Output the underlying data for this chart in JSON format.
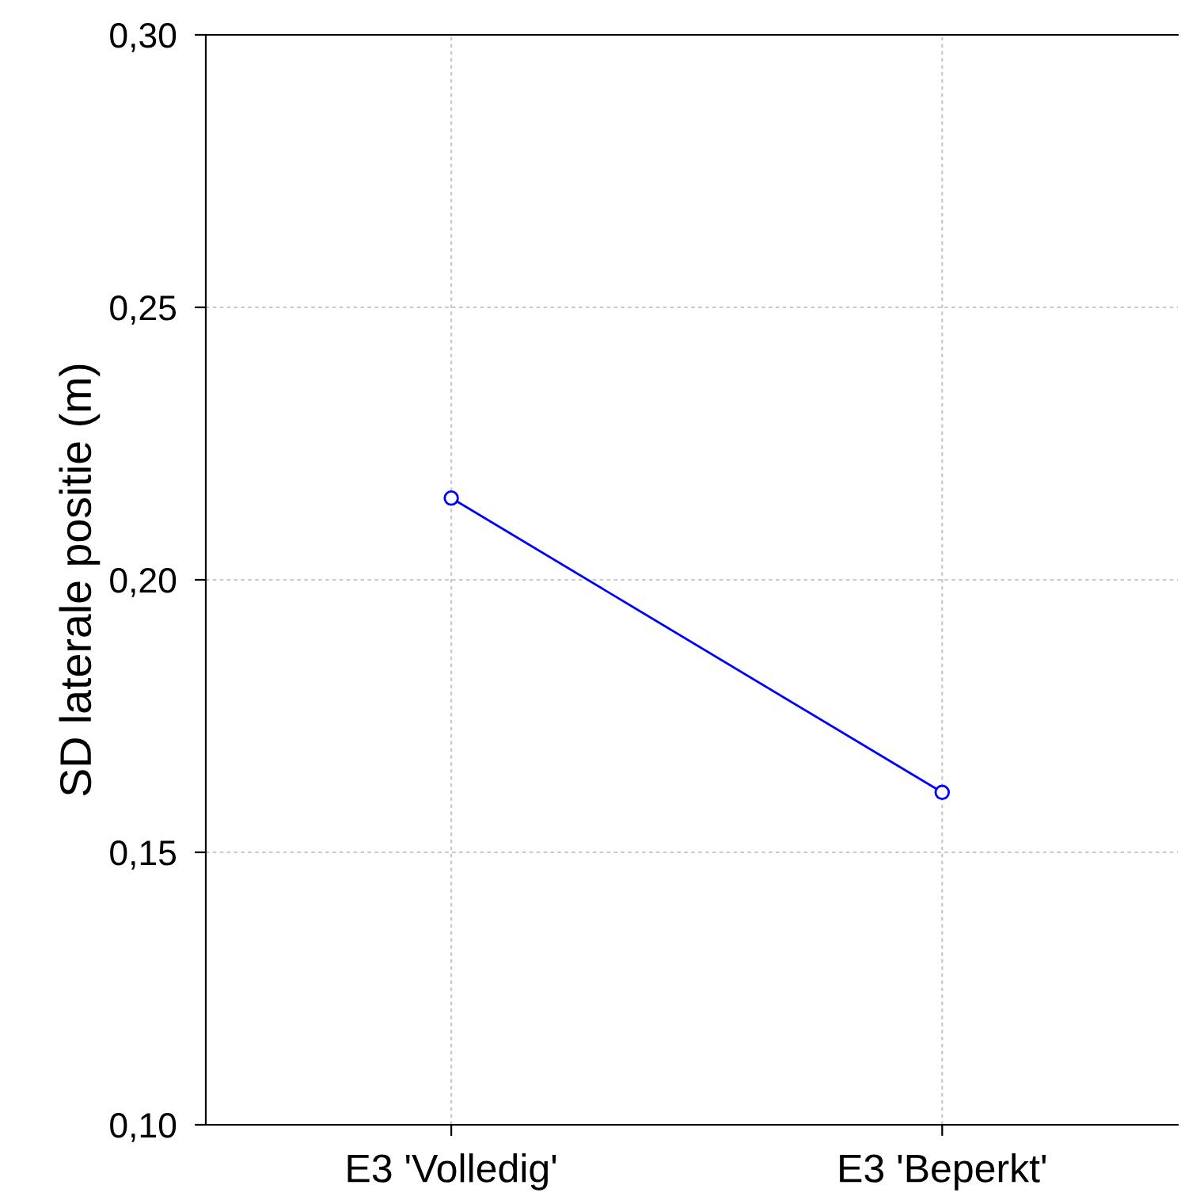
{
  "chart_data": {
    "type": "line",
    "ylabel": "SD laterale positie (m)",
    "categories": [
      "E3 'Volledig'",
      "E3 'Beperkt'"
    ],
    "series": [
      {
        "color": "#0000ff",
        "values": [
          0.215,
          0.161
        ]
      }
    ],
    "ylim": [
      0.1,
      0.3
    ],
    "yticks": [
      {
        "value": 0.1,
        "label": "0,10"
      },
      {
        "value": 0.15,
        "label": "0,15"
      },
      {
        "value": 0.2,
        "label": "0,20"
      },
      {
        "value": 0.25,
        "label": "0,25"
      },
      {
        "value": 0.3,
        "label": "0,30"
      }
    ],
    "grid": true,
    "marker": "circle",
    "line_style": "solid"
  }
}
